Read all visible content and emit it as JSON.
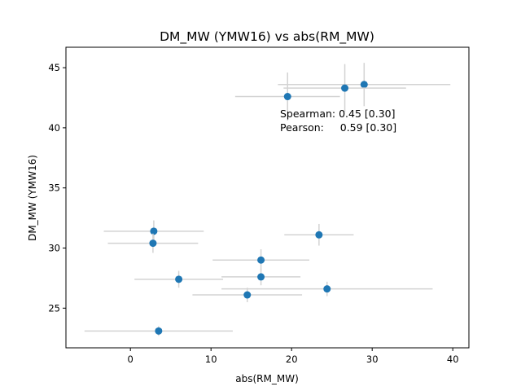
{
  "chart_data": {
    "type": "scatter",
    "title": "DM_MW (YMW16) vs abs(RM_MW)",
    "xlabel": "abs(RM_MW)",
    "ylabel": "DM_MW (YMW16)",
    "xlim": [
      -8,
      42
    ],
    "ylim": [
      21.7,
      46.7
    ],
    "xticks": [
      0,
      10,
      20,
      30,
      40
    ],
    "yticks": [
      25,
      30,
      35,
      40,
      45
    ],
    "grid": false,
    "colors": {
      "marker": "#1f77b4",
      "errorbar": "#d3d3d3"
    },
    "points": [
      {
        "x": 29.0,
        "y": 43.6,
        "xerr": 10.7,
        "yerr": 1.8
      },
      {
        "x": 26.6,
        "y": 43.3,
        "xerr": 7.6,
        "yerr": 2.0
      },
      {
        "x": 19.5,
        "y": 42.6,
        "xerr": 6.5,
        "yerr": 2.0
      },
      {
        "x": 2.9,
        "y": 31.4,
        "xerr": 6.2,
        "yerr": 0.9
      },
      {
        "x": 23.4,
        "y": 31.1,
        "xerr": 4.3,
        "yerr": 0.9
      },
      {
        "x": 2.8,
        "y": 30.4,
        "xerr": 5.6,
        "yerr": 0.8
      },
      {
        "x": 16.2,
        "y": 29.0,
        "xerr": 6.0,
        "yerr": 0.9
      },
      {
        "x": 16.2,
        "y": 27.6,
        "xerr": 4.9,
        "yerr": 0.7
      },
      {
        "x": 6.0,
        "y": 27.4,
        "xerr": 5.5,
        "yerr": 0.7
      },
      {
        "x": 24.4,
        "y": 26.6,
        "xerr": 13.1,
        "yerr": 0.6
      },
      {
        "x": 14.5,
        "y": 26.1,
        "xerr": 6.8,
        "yerr": 0.6
      },
      {
        "x": 3.5,
        "y": 23.1,
        "xerr": 9.2,
        "yerr": 0.4
      }
    ],
    "annotations": [
      "Spearman: 0.45 [0.30]",
      "Pearson:     0.59 [0.30]"
    ]
  }
}
